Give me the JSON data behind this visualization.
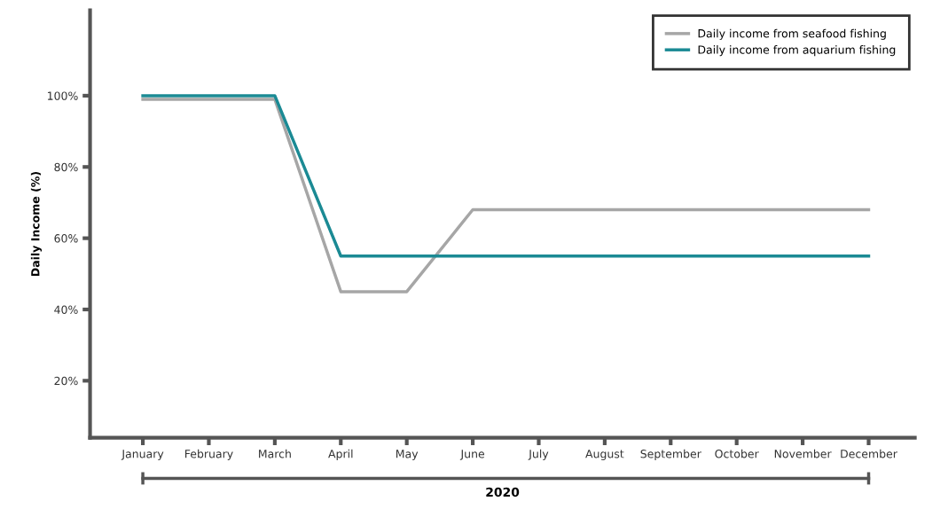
{
  "chart_data": {
    "type": "line",
    "ylabel": "Daily Income (%)",
    "xlabel": "2020",
    "categories": [
      "January",
      "February",
      "March",
      "April",
      "May",
      "June",
      "July",
      "August",
      "September",
      "October",
      "November",
      "December"
    ],
    "series": [
      {
        "name": "Daily income from seafood fishing",
        "color": "#a6a6a6",
        "values": [
          99,
          99,
          99,
          45,
          45,
          68,
          68,
          68,
          68,
          68,
          68,
          68
        ]
      },
      {
        "name": "Daily income from aquarium fishing",
        "color": "#1b8a94",
        "values": [
          100,
          100,
          100,
          55,
          55,
          55,
          55,
          55,
          55,
          55,
          55,
          55
        ]
      }
    ],
    "ylim": [
      4,
      124
    ],
    "yticks": [
      {
        "value": 20,
        "label": "20%"
      },
      {
        "value": 40,
        "label": "40%"
      },
      {
        "value": 60,
        "label": "60%"
      },
      {
        "value": 80,
        "label": "80%"
      },
      {
        "value": 100,
        "label": "100%"
      }
    ],
    "grid": false,
    "legend": "top right",
    "marker": "none",
    "line_style": "solid"
  }
}
